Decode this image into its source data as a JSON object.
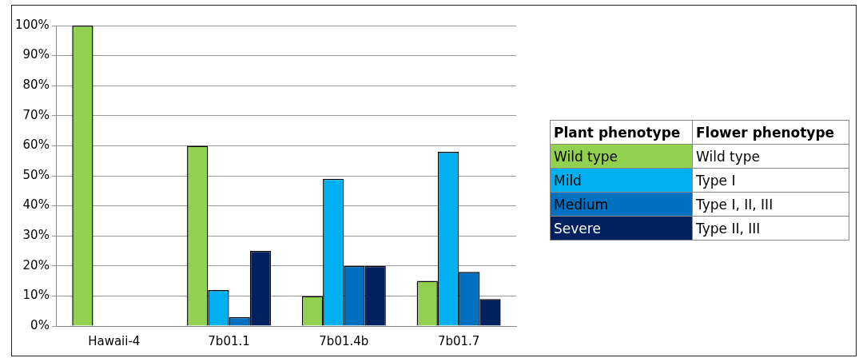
{
  "chart_data": {
    "type": "bar",
    "categories": [
      "Hawaii-4",
      "7b01.1",
      "7b01.4b",
      "7b01.7"
    ],
    "series": [
      {
        "name": "Wild type",
        "color": "#92d050",
        "values": [
          100,
          60,
          10,
          15
        ]
      },
      {
        "name": "Mild",
        "color": "#00b0f0",
        "values": [
          0,
          12,
          49,
          58
        ]
      },
      {
        "name": "Medium",
        "color": "#0070c0",
        "values": [
          0,
          3,
          20,
          18
        ]
      },
      {
        "name": "Severe",
        "color": "#002060",
        "values": [
          0,
          25,
          20,
          9
        ]
      }
    ],
    "ylim": [
      0,
      100
    ],
    "yticks": [
      {
        "value": 0,
        "label": "0%"
      },
      {
        "value": 10,
        "label": "10%"
      },
      {
        "value": 20,
        "label": "20%"
      },
      {
        "value": 30,
        "label": "30%"
      },
      {
        "value": 40,
        "label": "40%"
      },
      {
        "value": 50,
        "label": "50%"
      },
      {
        "value": 60,
        "label": "60%"
      },
      {
        "value": 70,
        "label": "70%"
      },
      {
        "value": 80,
        "label": "80%"
      },
      {
        "value": 90,
        "label": "90%"
      },
      {
        "value": 100,
        "label": "100%"
      }
    ],
    "grid": "y",
    "legend": "right",
    "legend_title": "Plant phenotype",
    "annotations": [
      "Flower phenotype",
      "Wild type",
      "Type I",
      "Type I, II, III",
      "Type II, III"
    ]
  }
}
